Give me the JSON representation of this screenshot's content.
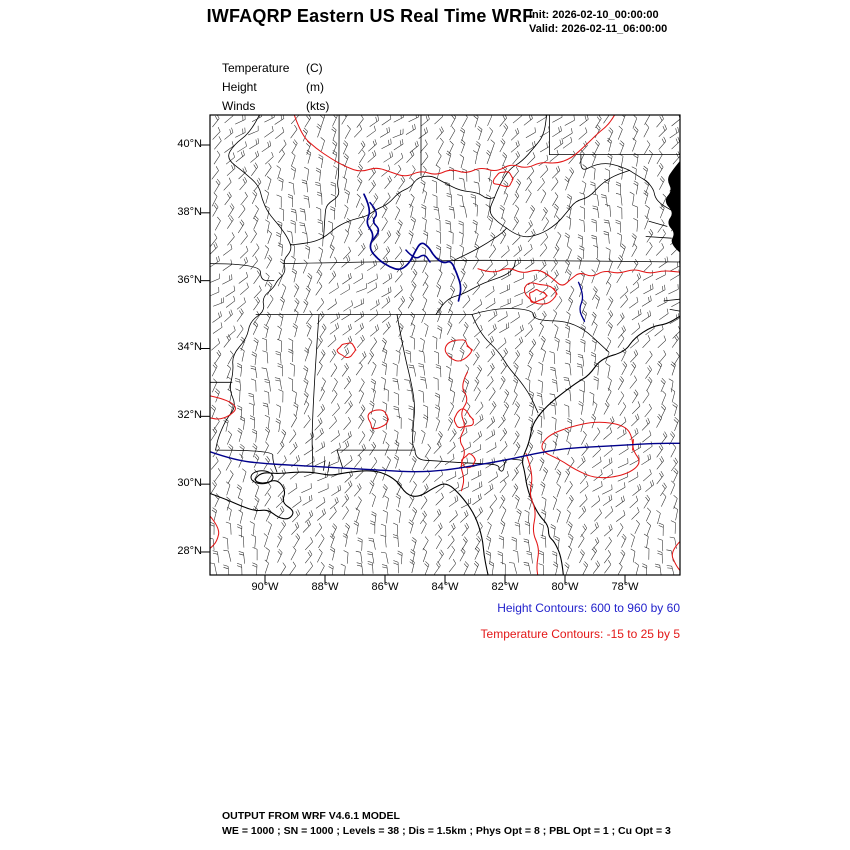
{
  "header": {
    "title": "IWFAQRP Eastern US Real Time WRF",
    "init": "Init: 2026-02-10_00:00:00",
    "valid": "Valid: 2026-02-11_06:00:00"
  },
  "legend": {
    "items": [
      {
        "label": "Temperature",
        "unit": "(C)"
      },
      {
        "label": "Height",
        "unit": "(m)"
      },
      {
        "label": "Winds",
        "unit": "(kts)"
      }
    ]
  },
  "map": {
    "lat_ticks": [
      "40°N",
      "38°N",
      "36°N",
      "34°N",
      "32°N",
      "30°N",
      "28°N"
    ],
    "lon_ticks": [
      "90°W",
      "88°W",
      "86°W",
      "84°W",
      "82°W",
      "80°W",
      "78°W"
    ]
  },
  "map_data": {
    "type": "weather-map",
    "region": "Eastern US / Southeast US",
    "variables": [
      "Temperature (C)",
      "Height (m)",
      "Winds (kts)"
    ],
    "height_contours": {
      "from": 600,
      "to": 960,
      "by": 60
    },
    "temperature_contours": {
      "from": -15,
      "to": 25,
      "by": 5
    },
    "lat_range": [
      "28°N",
      "40°N"
    ],
    "lon_range": [
      "90°W",
      "78°W"
    ]
  },
  "captions": {
    "height_contours": "Height Contours: 600 to 960 by 60",
    "temperature_contours": "Temperature Contours: -15 to 25 by 5"
  },
  "footer": {
    "line1": "OUTPUT FROM WRF V4.6.1 MODEL",
    "line2": "WE = 1000 ; SN = 1000 ; Levels = 38 ; Dis = 1.5km ; Phys Opt = 8 ; PBL Opt = 1 ; Cu Opt = 3"
  },
  "colors": {
    "height_contour": "#00008b",
    "temperature_contour": "#e31717",
    "caption_height": "#2222cc",
    "caption_temperature": "#e31717",
    "geography": "#000000"
  }
}
